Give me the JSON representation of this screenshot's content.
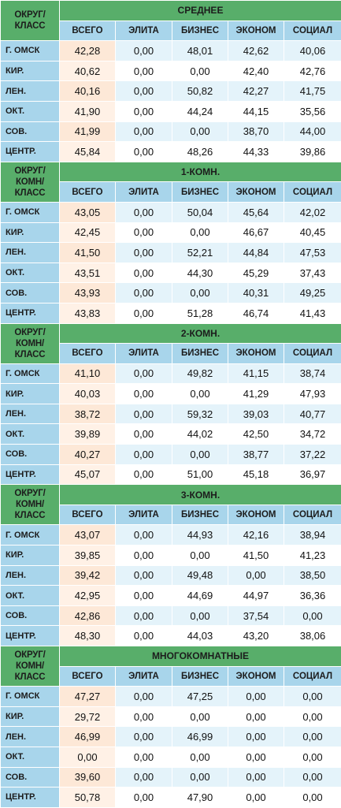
{
  "columns": [
    "ВСЕГО",
    "ЭЛИТА",
    "БИЗНЕС",
    "ЭКОНОМ",
    "СОЦИАЛ"
  ],
  "row_labels": [
    "Г. ОМСК",
    "КИР.",
    "ЛЕН.",
    "ОКТ.",
    "СОВ.",
    "ЦЕНТР."
  ],
  "sections": [
    {
      "corner": "ОКРУГ/ КЛАСС",
      "title": "СРЕДНЕЕ",
      "rows": [
        [
          "42,28",
          "0,00",
          "48,01",
          "42,62",
          "40,06"
        ],
        [
          "40,62",
          "0,00",
          "0,00",
          "42,40",
          "42,76"
        ],
        [
          "40,16",
          "0,00",
          "50,82",
          "42,27",
          "41,75"
        ],
        [
          "41,90",
          "0,00",
          "44,24",
          "44,15",
          "35,56"
        ],
        [
          "41,99",
          "0,00",
          "0,00",
          "38,70",
          "44,00"
        ],
        [
          "45,84",
          "0,00",
          "48,26",
          "44,33",
          "39,86"
        ]
      ]
    },
    {
      "corner": "ОКРУГ/ КОМН/ КЛАСС",
      "title": "1-КОМН.",
      "rows": [
        [
          "43,05",
          "0,00",
          "50,04",
          "45,64",
          "42,02"
        ],
        [
          "42,45",
          "0,00",
          "0,00",
          "46,67",
          "40,45"
        ],
        [
          "41,50",
          "0,00",
          "52,21",
          "44,84",
          "47,53"
        ],
        [
          "43,51",
          "0,00",
          "44,30",
          "45,29",
          "37,43"
        ],
        [
          "43,93",
          "0,00",
          "0,00",
          "40,31",
          "49,25"
        ],
        [
          "43,83",
          "0,00",
          "51,28",
          "46,74",
          "41,43"
        ]
      ]
    },
    {
      "corner": "ОКРУГ/ КОМН/ КЛАСС",
      "title": "2-КОМН.",
      "rows": [
        [
          "41,10",
          "0,00",
          "49,82",
          "41,15",
          "38,74"
        ],
        [
          "40,03",
          "0,00",
          "0,00",
          "41,29",
          "47,93"
        ],
        [
          "38,72",
          "0,00",
          "59,32",
          "39,03",
          "40,77"
        ],
        [
          "39,89",
          "0,00",
          "44,02",
          "42,50",
          "34,72"
        ],
        [
          "40,27",
          "0,00",
          "0,00",
          "38,77",
          "37,22"
        ],
        [
          "45,07",
          "0,00",
          "51,00",
          "45,18",
          "36,97"
        ]
      ]
    },
    {
      "corner": "ОКРУГ/ КОМН/ КЛАСС",
      "title": "3-КОМН.",
      "rows": [
        [
          "43,07",
          "0,00",
          "44,93",
          "42,16",
          "38,94"
        ],
        [
          "39,85",
          "0,00",
          "0,00",
          "41,50",
          "41,23"
        ],
        [
          "39,42",
          "0,00",
          "49,48",
          "0,00",
          "38,50"
        ],
        [
          "42,95",
          "0,00",
          "44,69",
          "44,97",
          "36,36"
        ],
        [
          "42,86",
          "0,00",
          "0,00",
          "37,54",
          "0,00"
        ],
        [
          "48,30",
          "0,00",
          "44,03",
          "43,20",
          "38,06"
        ]
      ]
    },
    {
      "corner": "ОКРУГ/ КОМН/ КЛАСС",
      "title": "МНОГОКОМНАТНЫЕ",
      "rows": [
        [
          "47,27",
          "0,00",
          "47,25",
          "0,00",
          "0,00"
        ],
        [
          "29,72",
          "0,00",
          "0,00",
          "0,00",
          "0,00"
        ],
        [
          "46,99",
          "0,00",
          "46,99",
          "0,00",
          "0,00"
        ],
        [
          "0,00",
          "0,00",
          "0,00",
          "0,00",
          "0,00"
        ],
        [
          "39,60",
          "0,00",
          "0,00",
          "0,00",
          "0,00"
        ],
        [
          "50,78",
          "0,00",
          "47,90",
          "0,00",
          "0,00"
        ]
      ]
    }
  ]
}
